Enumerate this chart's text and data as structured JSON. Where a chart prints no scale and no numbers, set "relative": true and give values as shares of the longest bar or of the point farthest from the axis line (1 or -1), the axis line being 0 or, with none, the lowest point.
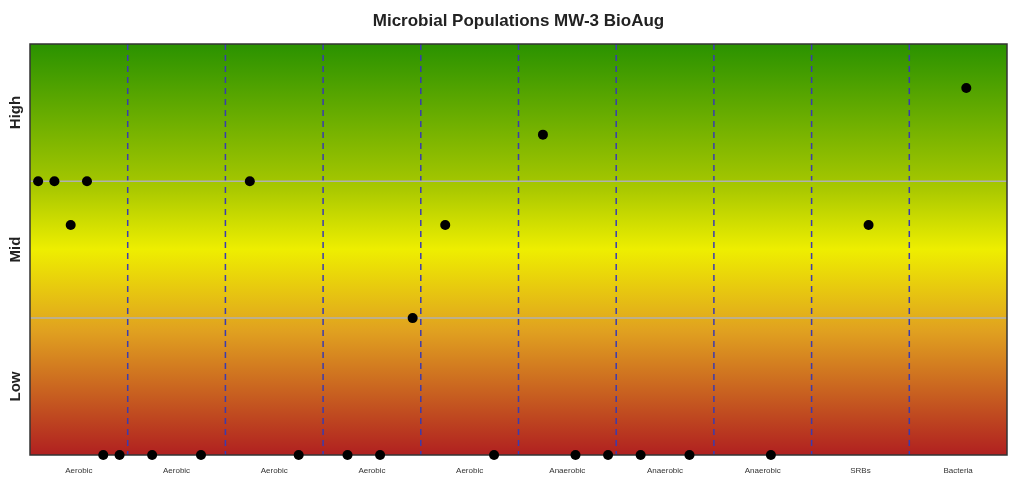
{
  "chart_data": {
    "type": "scatter",
    "title": "Microbial Populations MW-3 BioAug",
    "categories": [
      "Aerobic",
      "Aerobic",
      "Aerobic",
      "Aerobic",
      "Aerobic",
      "Anaerobic",
      "Anaerobic",
      "Anaerobic",
      "SRBs",
      "Bacteria"
    ],
    "relative": true,
    "series": [
      {
        "color": "#000000",
        "values": [
          0.746,
          null,
          null,
          null,
          null,
          null,
          null,
          null,
          null,
          null
        ]
      },
      {
        "color": "#000000",
        "values": [
          0.746,
          0,
          0.746,
          0,
          0.627,
          0.873,
          0,
          null,
          null,
          null
        ]
      },
      {
        "color": "#000000",
        "values": [
          0.627,
          null,
          null,
          null,
          null,
          null,
          null,
          null,
          null,
          null
        ]
      },
      {
        "color": "#000000",
        "values": [
          0.746,
          null,
          null,
          0,
          null,
          0,
          null,
          0,
          0.627,
          1
        ]
      },
      {
        "color": "#000000",
        "values": [
          0,
          0,
          0,
          null,
          0,
          null,
          0,
          null,
          null,
          null
        ]
      },
      {
        "color": "#000000",
        "values": [
          0,
          null,
          null,
          0.373,
          null,
          0,
          null,
          null,
          null,
          null
        ]
      }
    ],
    "annotations": [
      "Low",
      "Mid",
      "High"
    ],
    "ref_lines": [
      {
        "axis": "y",
        "value": 0.373,
        "color": "#b0b0b0"
      },
      {
        "axis": "y",
        "value": 0.746,
        "color": "#b0b0b0"
      }
    ],
    "marker": "circle",
    "grid": "x"
  }
}
